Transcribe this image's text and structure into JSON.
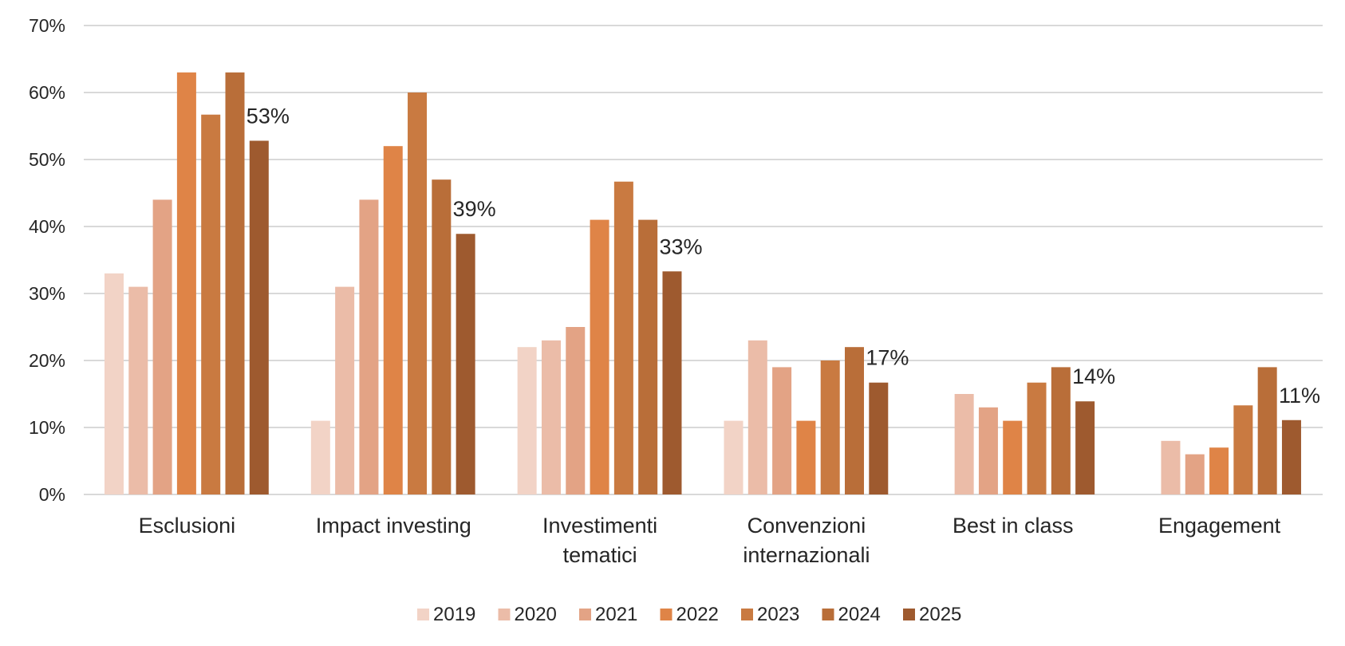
{
  "chart_data": {
    "type": "bar",
    "title": "",
    "xlabel": "",
    "ylabel": "",
    "ylim": [
      0,
      70
    ],
    "yticks": [
      0,
      10,
      20,
      30,
      40,
      50,
      60,
      70
    ],
    "ytick_labels": [
      "0%",
      "10%",
      "20%",
      "30%",
      "40%",
      "50%",
      "60%",
      "70%"
    ],
    "grid": true,
    "legend_position": "bottom",
    "categories": [
      "Esclusioni",
      "Impact investing",
      "Investimenti tematici",
      "Convenzioni internazionali",
      "Best in class",
      "Engagement"
    ],
    "category_label_lines": [
      [
        "Esclusioni"
      ],
      [
        "Impact investing"
      ],
      [
        "Investimenti",
        "tematici"
      ],
      [
        "Convenzioni",
        "internazionali"
      ],
      [
        "Best in class"
      ],
      [
        "Engagement"
      ]
    ],
    "series": [
      {
        "name": "2019",
        "color": "#F2D3C6",
        "values": [
          33,
          11,
          22,
          11,
          null,
          null
        ]
      },
      {
        "name": "2020",
        "color": "#EBBCA8",
        "values": [
          31,
          31,
          23,
          23,
          15,
          8
        ]
      },
      {
        "name": "2021",
        "color": "#E3A385",
        "values": [
          44,
          44,
          25,
          19,
          13,
          6
        ]
      },
      {
        "name": "2022",
        "color": "#DF8447",
        "values": [
          63,
          52,
          41,
          11,
          11,
          7
        ]
      },
      {
        "name": "2023",
        "color": "#C97A41",
        "values": [
          56.7,
          60,
          46.7,
          20,
          16.7,
          13.3
        ]
      },
      {
        "name": "2024",
        "color": "#B96E39",
        "values": [
          63,
          47,
          41,
          22,
          19,
          19
        ]
      },
      {
        "name": "2025",
        "color": "#9E5A2F",
        "values": [
          52.8,
          38.9,
          33.3,
          16.7,
          13.9,
          11.1
        ]
      }
    ],
    "data_labels": {
      "series": "2025",
      "texts": [
        "53%",
        "39%",
        "33%",
        "17%",
        "14%",
        "11%"
      ]
    }
  }
}
